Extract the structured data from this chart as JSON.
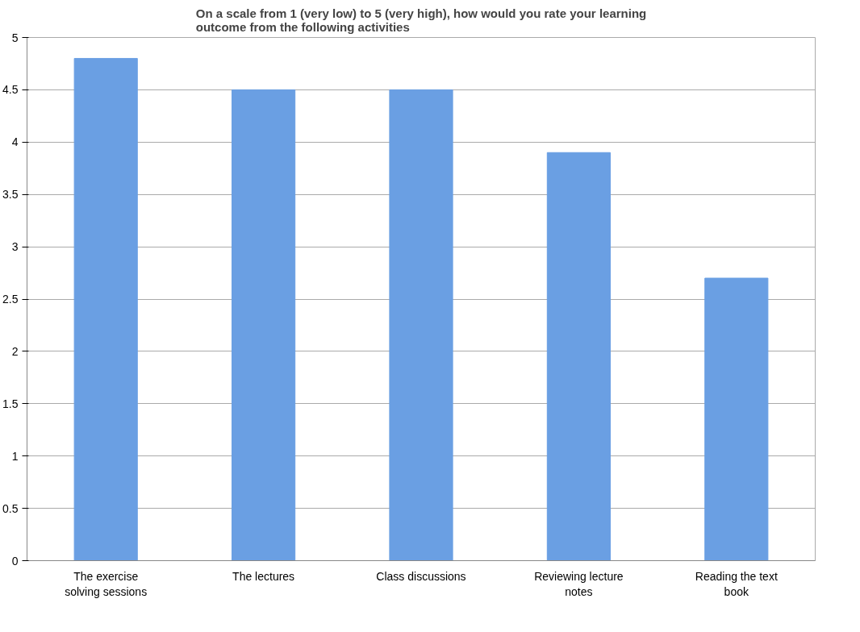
{
  "chart_data": {
    "type": "bar",
    "title": "On a scale from 1 (very low) to 5 (very high), how would you rate your learning\noutcome from the following activities",
    "categories": [
      "The exercise solving sessions",
      "The lectures",
      "Class discussions",
      "Reviewing lecture notes",
      "Reading the text book"
    ],
    "values": [
      4.8,
      4.5,
      4.5,
      3.9,
      2.7
    ],
    "color": "#6a9fe3",
    "ylim": [
      0,
      5
    ],
    "yticks": [
      0,
      {
        "value": 0.5,
        "label": "0.5"
      },
      1,
      {
        "value": 1.5,
        "label": "1.5"
      },
      2,
      {
        "value": 2.5,
        "label": "2.5"
      },
      3,
      {
        "value": 3.5,
        "label": "3.5"
      },
      4,
      {
        "value": 4.5,
        "label": "4.5"
      },
      5
    ],
    "grid": "y"
  }
}
